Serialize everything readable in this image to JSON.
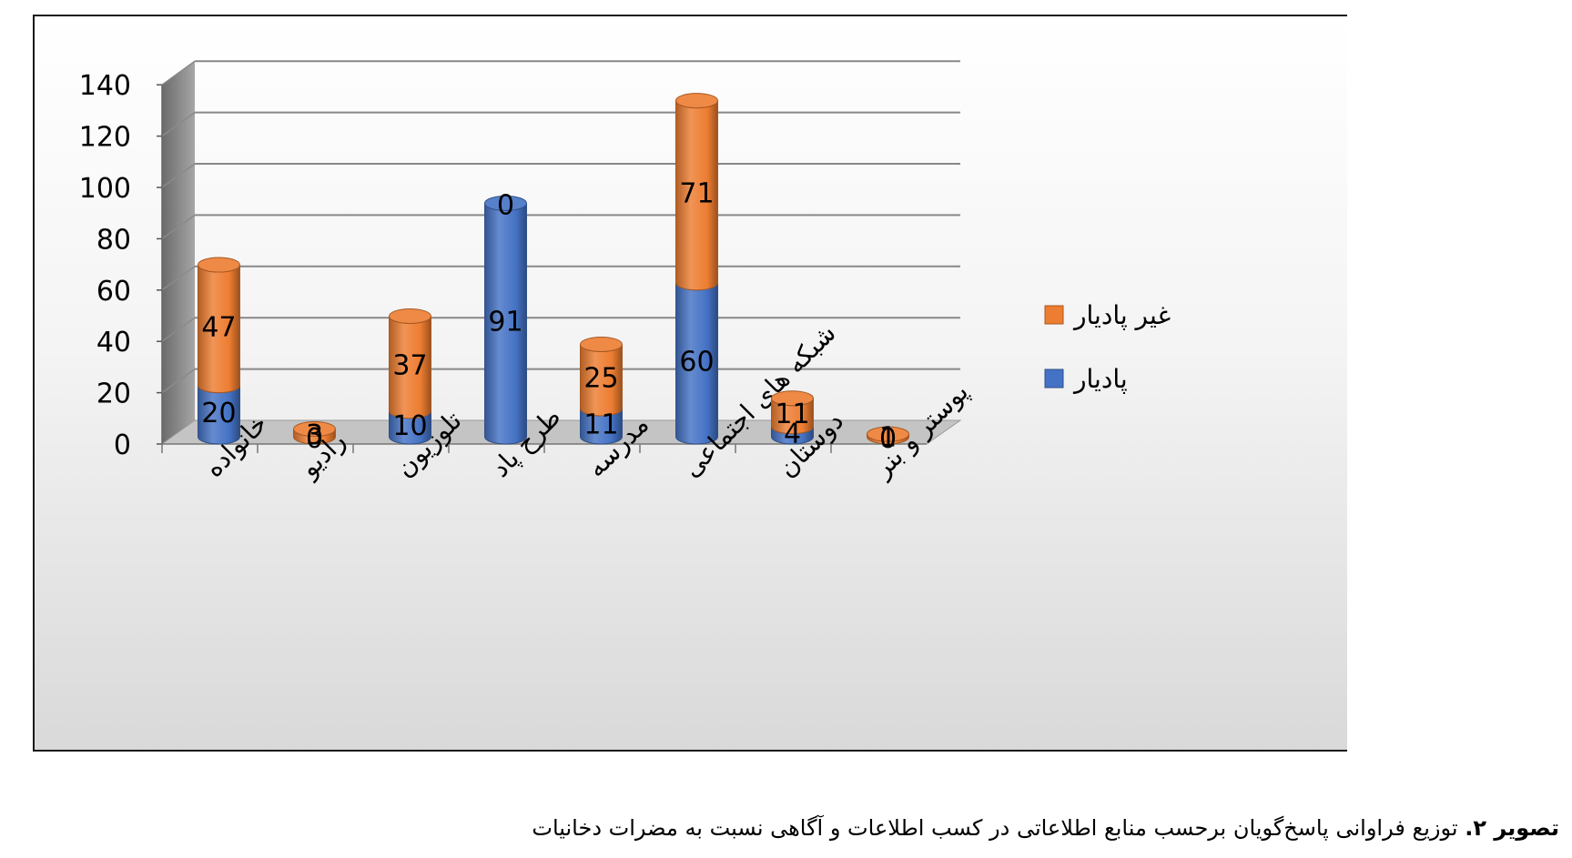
{
  "chart_data": {
    "type": "bar",
    "stacked": true,
    "style": "3d-cylinder",
    "title": "",
    "xlabel": "",
    "ylabel": "",
    "ylim": [
      0,
      140
    ],
    "yticks": [
      0,
      20,
      40,
      60,
      80,
      100,
      120,
      140
    ],
    "grid": true,
    "legend_position": "right",
    "categories": [
      "خانواده",
      "رادیو",
      "تلوزیون",
      "طرح پاد",
      "مدرسه",
      "شبکه های اجتماعی",
      "دوستان",
      "پوستر و بنر"
    ],
    "series": [
      {
        "name": "پادیار",
        "color": "#4472c4",
        "values": [
          20,
          0,
          10,
          91,
          11,
          60,
          4,
          0
        ]
      },
      {
        "name": "غیر پادیار",
        "color": "#ed7d31",
        "values": [
          47,
          3,
          37,
          0,
          25,
          71,
          11,
          1
        ]
      }
    ]
  },
  "caption": {
    "label": "تصویر ۲.",
    "text": " توزیع فراوانی پاسخ‌گویان برحسب منابع اطلاعاتی در کسب اطلاعات و آگاهی نسبت به مضرات دخانیات"
  }
}
